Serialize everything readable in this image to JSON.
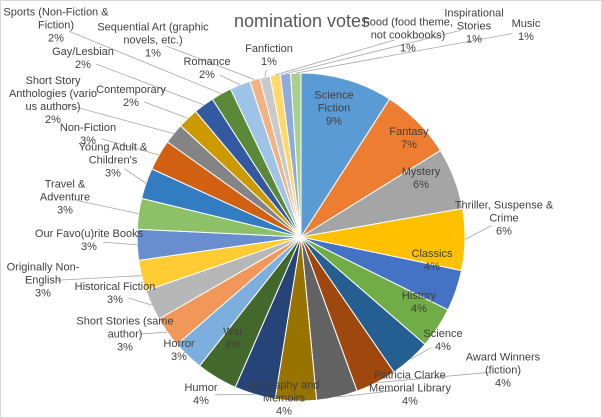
{
  "chart_data": {
    "type": "pie",
    "title": "nomination votes",
    "categories": [
      "Science Fiction",
      "Fantasy",
      "Mystery",
      "Thriller, Suspense & Crime",
      "Classics",
      "History",
      "Science",
      "Award Winners (fiction)",
      "Patricia Clarke Memorial Library",
      "Biography and Memoirs",
      "Humor",
      "War",
      "Horror",
      "Short Stories (same author)",
      "Historical Fiction",
      "Originally Non-English",
      "Our Favo(u)rite Books",
      "Travel & Adventure",
      "Young Adult & Children's",
      "Non-Fiction",
      "Short Story Anthologies (vario us authors)",
      "Contemporary",
      "Gay/Lesbian",
      "Sports (Non-Fiction & Fiction)",
      "Romance",
      "Sequential Art (graphic novels, etc.)",
      "Fanfiction",
      "Food (food theme, not cookbooks)",
      "Inspirational Stories",
      "Music"
    ],
    "values": [
      9,
      7,
      6,
      6,
      4,
      4,
      4,
      4,
      4,
      4,
      4,
      4,
      3,
      3,
      3,
      3,
      3,
      3,
      3,
      3,
      2,
      2,
      2,
      2,
      2,
      1,
      1,
      1,
      1,
      1
    ],
    "value_labels": [
      "9%",
      "7%",
      "6%",
      "6%",
      "4%",
      "4%",
      "4%",
      "4%",
      "4%",
      "4%",
      "4%",
      "4%",
      "3%",
      "3%",
      "3%",
      "3%",
      "3%",
      "3%",
      "3%",
      "3%",
      "2%",
      "2%",
      "2%",
      "2%",
      "2%",
      "1%",
      "1%",
      "1%",
      "1%",
      "1%"
    ],
    "colors": [
      "#5B9BD5",
      "#ED7D31",
      "#A5A5A5",
      "#FFC000",
      "#4472C4",
      "#70AD47",
      "#255E91",
      "#9E480E",
      "#636363",
      "#997300",
      "#264478",
      "#43682B",
      "#7CAFDD",
      "#F1975A",
      "#B7B7B7",
      "#FFCD33",
      "#698ED0",
      "#8CC168",
      "#327DC2",
      "#D26012",
      "#848484",
      "#CC9A00",
      "#335AA1",
      "#5A8A39",
      "#9DC3E6",
      "#F4B183",
      "#C9C9C9",
      "#FFD966",
      "#8FAADC",
      "#A9D18E"
    ]
  }
}
